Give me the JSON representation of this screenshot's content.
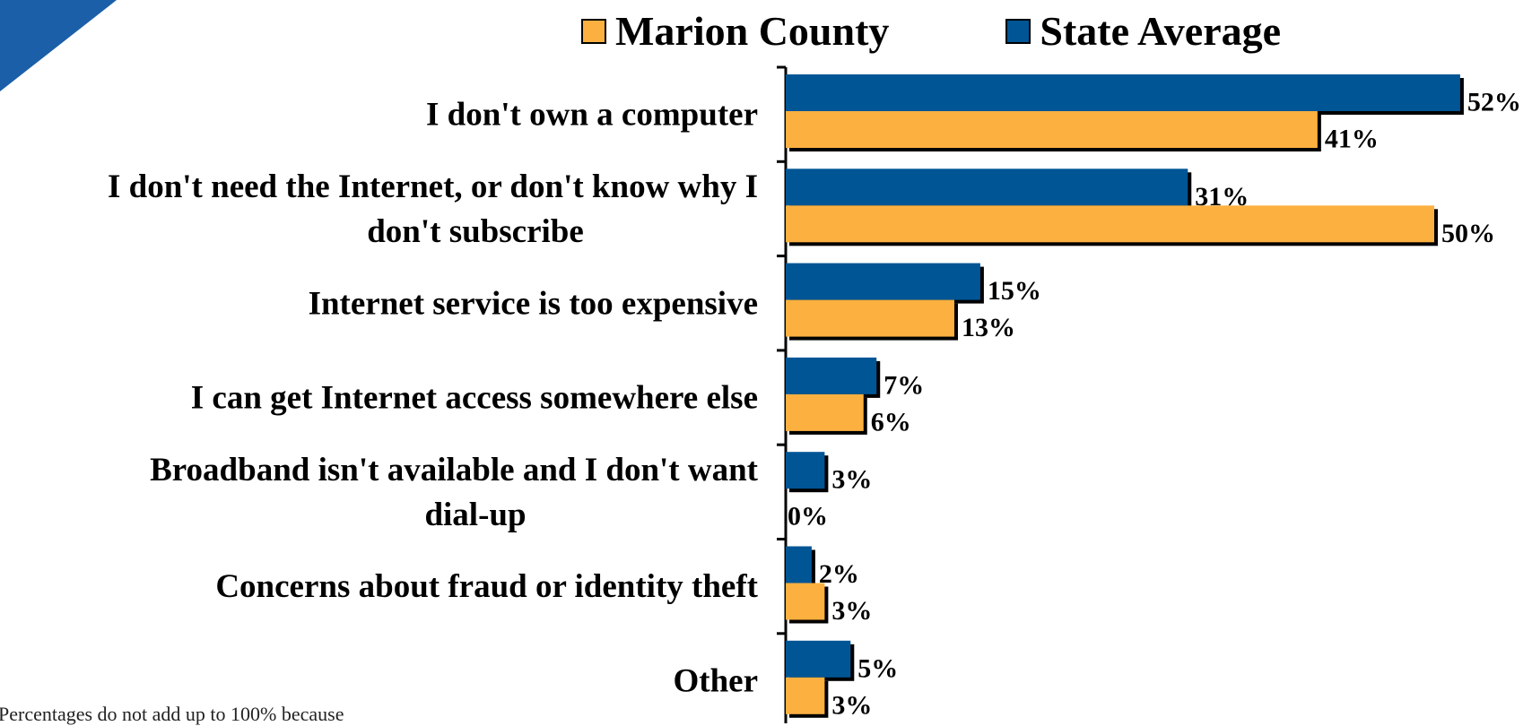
{
  "colors": {
    "marion": "#FBB040",
    "state": "#005595",
    "shadow": "#000000",
    "corner": "#1A5FA8"
  },
  "legend": {
    "position": "top",
    "items": [
      {
        "key": "marion",
        "label": "Marion County"
      },
      {
        "key": "state",
        "label": "State Average"
      }
    ]
  },
  "footnote": "Percentages do not add up to 100% because",
  "chart_data": {
    "type": "bar",
    "orientation": "horizontal",
    "categories": [
      "I don't own a computer",
      "I don't need the Internet, or don't know why I don't subscribe",
      "Internet service is too expensive",
      "I can get Internet access somewhere else",
      "Broadband isn't available and I don't want dial-up",
      "Concerns about fraud or identity theft",
      "Other"
    ],
    "category_lines": [
      [
        "I don't own a computer"
      ],
      [
        "I don't need the Internet, or don't know why I",
        "don't subscribe"
      ],
      [
        "Internet service is too expensive"
      ],
      [
        "I can get Internet access somewhere else"
      ],
      [
        "Broadband isn't available and I don't want",
        "dial-up"
      ],
      [
        "Concerns about fraud or identity theft"
      ],
      [
        "Other"
      ]
    ],
    "series": [
      {
        "key": "state",
        "name": "State Average",
        "values": [
          52,
          31,
          15,
          7,
          3,
          2,
          5
        ]
      },
      {
        "key": "marion",
        "name": "Marion County",
        "values": [
          41,
          50,
          13,
          6,
          0,
          3,
          3
        ]
      }
    ],
    "value_suffix": "%",
    "xlim": [
      0,
      55
    ],
    "grid": false,
    "title": "",
    "xlabel": "",
    "ylabel": ""
  }
}
